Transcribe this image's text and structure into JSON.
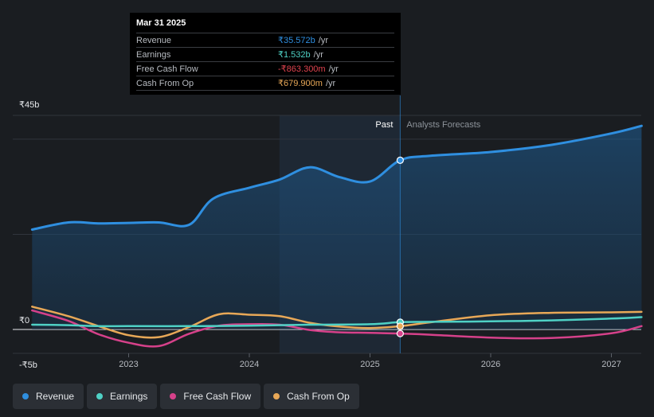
{
  "chart_data": {
    "type": "line",
    "title": "",
    "currency_symbol": "₹",
    "y_ticks": [
      {
        "value": 45,
        "label": "₹45b"
      },
      {
        "value": 0,
        "label": "₹0"
      },
      {
        "value": -5,
        "label": "-₹5b"
      }
    ],
    "x_ticks": [
      {
        "value": 2023.0,
        "label": "2023"
      },
      {
        "value": 2024.0,
        "label": "2024"
      },
      {
        "value": 2025.0,
        "label": "2025"
      },
      {
        "value": 2026.0,
        "label": "2026"
      },
      {
        "value": 2027.0,
        "label": "2027"
      }
    ],
    "xlim": [
      2022.0,
      2027.25
    ],
    "ylim": [
      -5,
      45
    ],
    "divider_date": 2025.25,
    "past_region_start": 2024.25,
    "past_label": "Past",
    "forecast_label": "Analysts Forecasts",
    "series": [
      {
        "name": "Revenue",
        "color": "#2f8fe0",
        "area": true,
        "points": [
          [
            2022.2,
            21
          ],
          [
            2022.5,
            22.5
          ],
          [
            2022.75,
            22.3
          ],
          [
            2023.0,
            22.4
          ],
          [
            2023.25,
            22.5
          ],
          [
            2023.5,
            22
          ],
          [
            2023.7,
            27.5
          ],
          [
            2024.0,
            29.8
          ],
          [
            2024.25,
            31.5
          ],
          [
            2024.5,
            34.1
          ],
          [
            2024.75,
            32
          ],
          [
            2025.0,
            31.1
          ],
          [
            2025.25,
            35.572
          ],
          [
            2025.5,
            36.5
          ],
          [
            2026.0,
            37.3
          ],
          [
            2026.5,
            38.8
          ],
          [
            2027.0,
            41.2
          ],
          [
            2027.25,
            42.8
          ]
        ]
      },
      {
        "name": "Earnings",
        "color": "#4fd1c5",
        "area": false,
        "points": [
          [
            2022.2,
            1.0
          ],
          [
            2022.5,
            0.9
          ],
          [
            2022.75,
            0.7
          ],
          [
            2023.0,
            0.7
          ],
          [
            2023.5,
            0.7
          ],
          [
            2024.0,
            0.8
          ],
          [
            2024.5,
            1.0
          ],
          [
            2025.0,
            1.1
          ],
          [
            2025.25,
            1.532
          ],
          [
            2025.5,
            1.6
          ],
          [
            2026.0,
            1.7
          ],
          [
            2026.5,
            1.9
          ],
          [
            2027.0,
            2.3
          ],
          [
            2027.25,
            2.6
          ]
        ]
      },
      {
        "name": "Free Cash Flow",
        "color": "#d6418a",
        "area": false,
        "points": [
          [
            2022.2,
            4.0
          ],
          [
            2022.5,
            1.8
          ],
          [
            2022.75,
            -1.0
          ],
          [
            2023.0,
            -2.8
          ],
          [
            2023.25,
            -3.5
          ],
          [
            2023.5,
            -0.9
          ],
          [
            2023.75,
            0.8
          ],
          [
            2024.0,
            1.1
          ],
          [
            2024.25,
            1.0
          ],
          [
            2024.5,
            -0.1
          ],
          [
            2024.75,
            -0.6
          ],
          [
            2025.0,
            -0.7
          ],
          [
            2025.25,
            -0.863
          ],
          [
            2025.5,
            -1.1
          ],
          [
            2026.0,
            -1.7
          ],
          [
            2026.5,
            -1.8
          ],
          [
            2027.0,
            -0.8
          ],
          [
            2027.25,
            0.7
          ]
        ]
      },
      {
        "name": "Cash From Op",
        "color": "#e8a857",
        "area": false,
        "points": [
          [
            2022.2,
            4.8
          ],
          [
            2022.5,
            2.8
          ],
          [
            2022.75,
            0.7
          ],
          [
            2023.0,
            -1.2
          ],
          [
            2023.25,
            -1.6
          ],
          [
            2023.5,
            0.5
          ],
          [
            2023.75,
            3.2
          ],
          [
            2024.0,
            3.1
          ],
          [
            2024.25,
            2.8
          ],
          [
            2024.5,
            1.4
          ],
          [
            2024.75,
            0.6
          ],
          [
            2025.0,
            0.3
          ],
          [
            2025.25,
            0.68
          ],
          [
            2025.5,
            1.5
          ],
          [
            2026.0,
            3.0
          ],
          [
            2026.5,
            3.5
          ],
          [
            2027.0,
            3.6
          ],
          [
            2027.25,
            3.7
          ]
        ]
      }
    ],
    "tooltip": {
      "date": "Mar 31 2025",
      "rows": [
        {
          "label": "Revenue",
          "value": "₹35.572b",
          "unit": "/yr",
          "color": "#2f8fe0"
        },
        {
          "label": "Earnings",
          "value": "₹1.532b",
          "unit": "/yr",
          "color": "#4fd1c5"
        },
        {
          "label": "Free Cash Flow",
          "value": "-₹863.300m",
          "unit": "/yr",
          "color": "#e0434f"
        },
        {
          "label": "Cash From Op",
          "value": "₹679.900m",
          "unit": "/yr",
          "color": "#e8a857"
        }
      ]
    }
  },
  "legend": [
    {
      "label": "Revenue",
      "color": "#2f8fe0"
    },
    {
      "label": "Earnings",
      "color": "#4fd1c5"
    },
    {
      "label": "Free Cash Flow",
      "color": "#d6418a"
    },
    {
      "label": "Cash From Op",
      "color": "#e8a857"
    }
  ]
}
